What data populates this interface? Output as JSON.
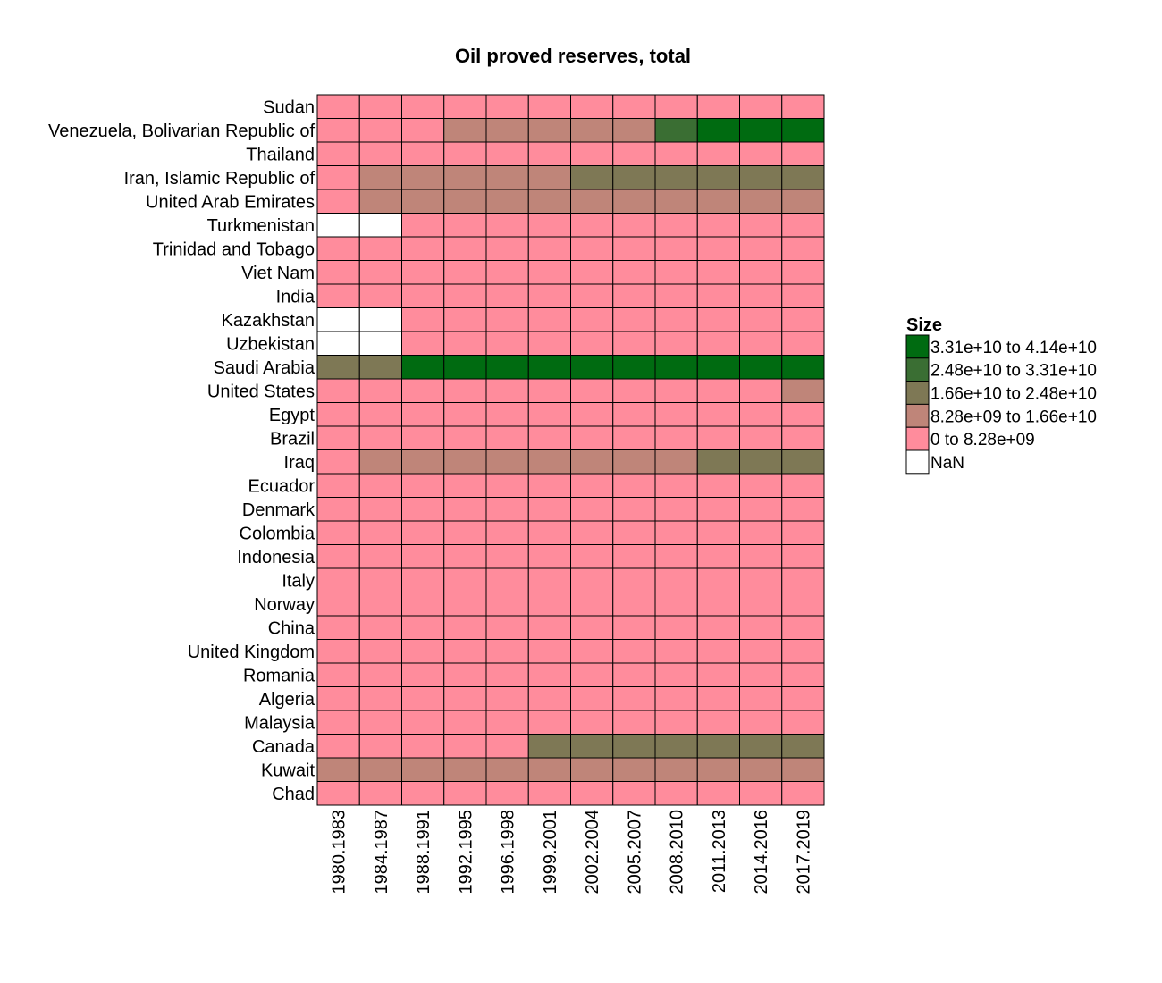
{
  "chart_data": {
    "type": "heatmap",
    "title": "Oil proved reserves, total",
    "xlabel": "",
    "ylabel": "",
    "columns": [
      "1980.1983",
      "1984.1987",
      "1988.1991",
      "1992.1995",
      "1996.1998",
      "1999.2001",
      "2002.2004",
      "2005.2007",
      "2008.2010",
      "2011.2013",
      "2014.2016",
      "2017.2019"
    ],
    "rows": [
      "Sudan",
      "Venezuela, Bolivarian Republic of",
      "Thailand",
      "Iran, Islamic Republic of",
      "United Arab Emirates",
      "Turkmenistan",
      "Trinidad and Tobago",
      "Viet Nam",
      "India",
      "Kazakhstan",
      "Uzbekistan",
      "Saudi Arabia",
      "United States",
      "Egypt",
      "Brazil",
      "Iraq",
      "Ecuador",
      "Denmark",
      "Colombia",
      "Indonesia",
      "Italy",
      "Norway",
      "China",
      "United Kingdom",
      "Romania",
      "Algeria",
      "Malaysia",
      "Canada",
      "Kuwait",
      "Chad"
    ],
    "bins": [
      [
        0,
        0,
        0,
        0,
        0,
        0,
        0,
        0,
        0,
        0,
        0,
        0
      ],
      [
        0,
        0,
        0,
        1,
        1,
        1,
        1,
        1,
        3,
        4,
        4,
        4
      ],
      [
        0,
        0,
        0,
        0,
        0,
        0,
        0,
        0,
        0,
        0,
        0,
        0
      ],
      [
        0,
        1,
        1,
        1,
        1,
        1,
        2,
        2,
        2,
        2,
        2,
        2
      ],
      [
        0,
        1,
        1,
        1,
        1,
        1,
        1,
        1,
        1,
        1,
        1,
        1
      ],
      [
        -1,
        -1,
        0,
        0,
        0,
        0,
        0,
        0,
        0,
        0,
        0,
        0
      ],
      [
        0,
        0,
        0,
        0,
        0,
        0,
        0,
        0,
        0,
        0,
        0,
        0
      ],
      [
        0,
        0,
        0,
        0,
        0,
        0,
        0,
        0,
        0,
        0,
        0,
        0
      ],
      [
        0,
        0,
        0,
        0,
        0,
        0,
        0,
        0,
        0,
        0,
        0,
        0
      ],
      [
        -1,
        -1,
        0,
        0,
        0,
        0,
        0,
        0,
        0,
        0,
        0,
        0
      ],
      [
        -1,
        -1,
        0,
        0,
        0,
        0,
        0,
        0,
        0,
        0,
        0,
        0
      ],
      [
        2,
        2,
        4,
        4,
        4,
        4,
        4,
        4,
        4,
        4,
        4,
        4
      ],
      [
        0,
        0,
        0,
        0,
        0,
        0,
        0,
        0,
        0,
        0,
        0,
        1
      ],
      [
        0,
        0,
        0,
        0,
        0,
        0,
        0,
        0,
        0,
        0,
        0,
        0
      ],
      [
        0,
        0,
        0,
        0,
        0,
        0,
        0,
        0,
        0,
        0,
        0,
        0
      ],
      [
        0,
        1,
        1,
        1,
        1,
        1,
        1,
        1,
        1,
        2,
        2,
        2
      ],
      [
        0,
        0,
        0,
        0,
        0,
        0,
        0,
        0,
        0,
        0,
        0,
        0
      ],
      [
        0,
        0,
        0,
        0,
        0,
        0,
        0,
        0,
        0,
        0,
        0,
        0
      ],
      [
        0,
        0,
        0,
        0,
        0,
        0,
        0,
        0,
        0,
        0,
        0,
        0
      ],
      [
        0,
        0,
        0,
        0,
        0,
        0,
        0,
        0,
        0,
        0,
        0,
        0
      ],
      [
        0,
        0,
        0,
        0,
        0,
        0,
        0,
        0,
        0,
        0,
        0,
        0
      ],
      [
        0,
        0,
        0,
        0,
        0,
        0,
        0,
        0,
        0,
        0,
        0,
        0
      ],
      [
        0,
        0,
        0,
        0,
        0,
        0,
        0,
        0,
        0,
        0,
        0,
        0
      ],
      [
        0,
        0,
        0,
        0,
        0,
        0,
        0,
        0,
        0,
        0,
        0,
        0
      ],
      [
        0,
        0,
        0,
        0,
        0,
        0,
        0,
        0,
        0,
        0,
        0,
        0
      ],
      [
        0,
        0,
        0,
        0,
        0,
        0,
        0,
        0,
        0,
        0,
        0,
        0
      ],
      [
        0,
        0,
        0,
        0,
        0,
        0,
        0,
        0,
        0,
        0,
        0,
        0
      ],
      [
        0,
        0,
        0,
        0,
        0,
        2,
        2,
        2,
        2,
        2,
        2,
        2
      ],
      [
        1,
        1,
        1,
        1,
        1,
        1,
        1,
        1,
        1,
        1,
        1,
        1
      ],
      [
        0,
        0,
        0,
        0,
        0,
        0,
        0,
        0,
        0,
        0,
        0,
        0
      ]
    ],
    "legend": {
      "title": "Size",
      "position": "right",
      "items": [
        {
          "label": "3.31e+10 to 4.14e+10",
          "color": "#006b11"
        },
        {
          "label": "2.48e+10 to 3.31e+10",
          "color": "#3a6e33"
        },
        {
          "label": "1.66e+10 to 2.48e+10",
          "color": "#7e7855"
        },
        {
          "label": "8.28e+09 to 1.66e+10",
          "color": "#bf8579"
        },
        {
          "label": "0 to 8.28e+09",
          "color": "#ff8c9c"
        },
        {
          "label": "NaN",
          "color": "#ffffff"
        }
      ]
    },
    "bin_colors": {
      "-1": "#ffffff",
      "0": "#ff8c9c",
      "1": "#bf8579",
      "2": "#7e7855",
      "3": "#3a6e33",
      "4": "#006b11"
    }
  }
}
